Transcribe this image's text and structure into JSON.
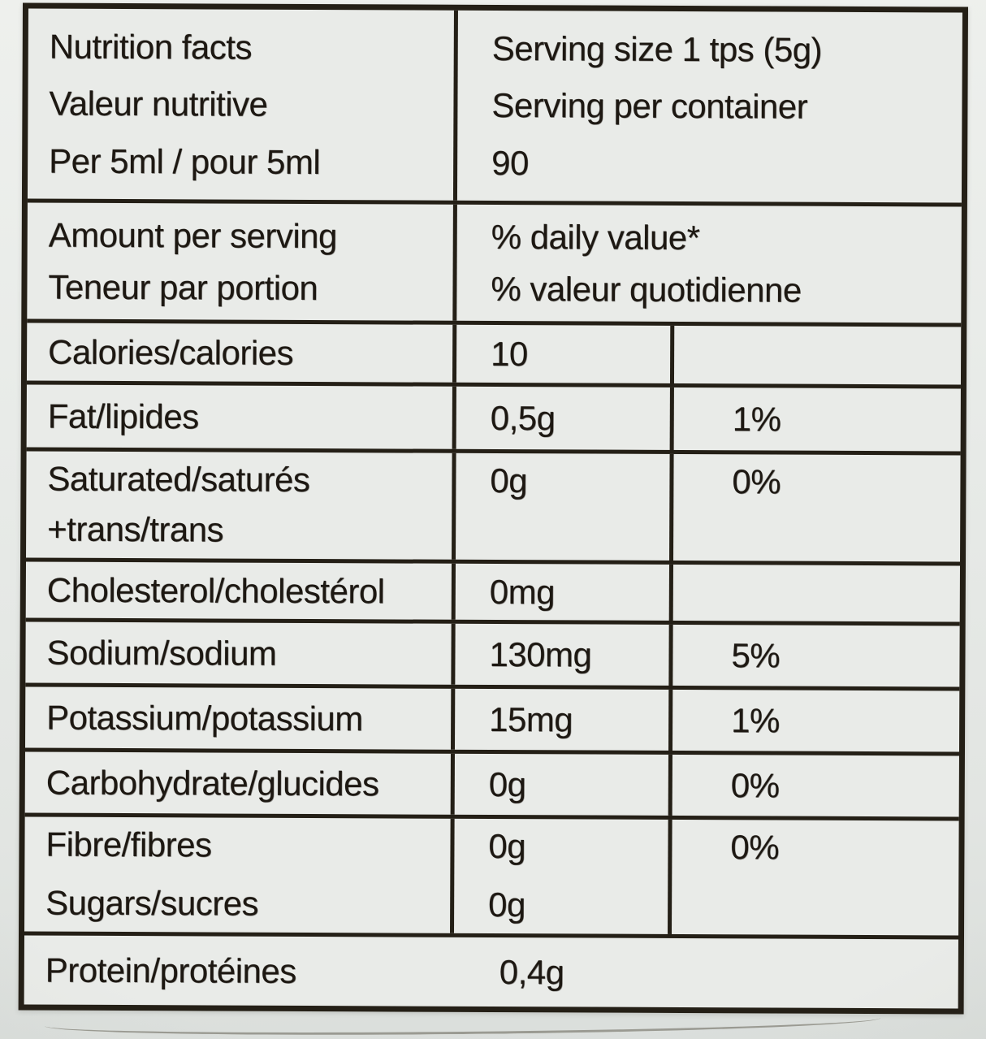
{
  "colors": {
    "photo_bg": "#e4e7e4",
    "label_bg": "#e9ebe8",
    "line": "#241f16",
    "text": "#1d1812"
  },
  "label": {
    "header": {
      "title_en": "Nutrition facts",
      "title_fr": "Valeur nutritive",
      "per_line": "Per 5ml / pour 5ml",
      "serving_size": "Serving size 1 tps (5g)",
      "servings_per_container_label": "Serving per container",
      "servings_per_container_value": "90"
    },
    "subheader": {
      "amount_en": "Amount per serving",
      "amount_fr": "Teneur par portion",
      "dv_en": "% daily value*",
      "dv_fr": "% valeur quotidienne"
    },
    "rows": [
      {
        "name": "Calories/calories",
        "amount": "10",
        "dv": ""
      },
      {
        "name": "Fat/lipides",
        "amount": "0,5g",
        "dv": "1%"
      },
      {
        "name": "Saturated/saturés",
        "name2": "+trans/trans",
        "amount": "0g",
        "dv": "0%"
      },
      {
        "name": "Cholesterol/cholestérol",
        "amount": "0mg",
        "dv": ""
      },
      {
        "name": "Sodium/sodium",
        "amount": "130mg",
        "dv": "5%"
      },
      {
        "name": "Potassium/potassium",
        "amount": "15mg",
        "dv": "1%"
      },
      {
        "name": "Carbohydrate/glucides",
        "amount": "0g",
        "dv": "0%"
      },
      {
        "name": "Fibre/fibres",
        "name2": "Sugars/sucres",
        "amount": "0g",
        "amount2": "0g",
        "dv": "0%"
      }
    ],
    "footer": {
      "name": "Protein/protéines",
      "amount": "0,4g"
    }
  }
}
